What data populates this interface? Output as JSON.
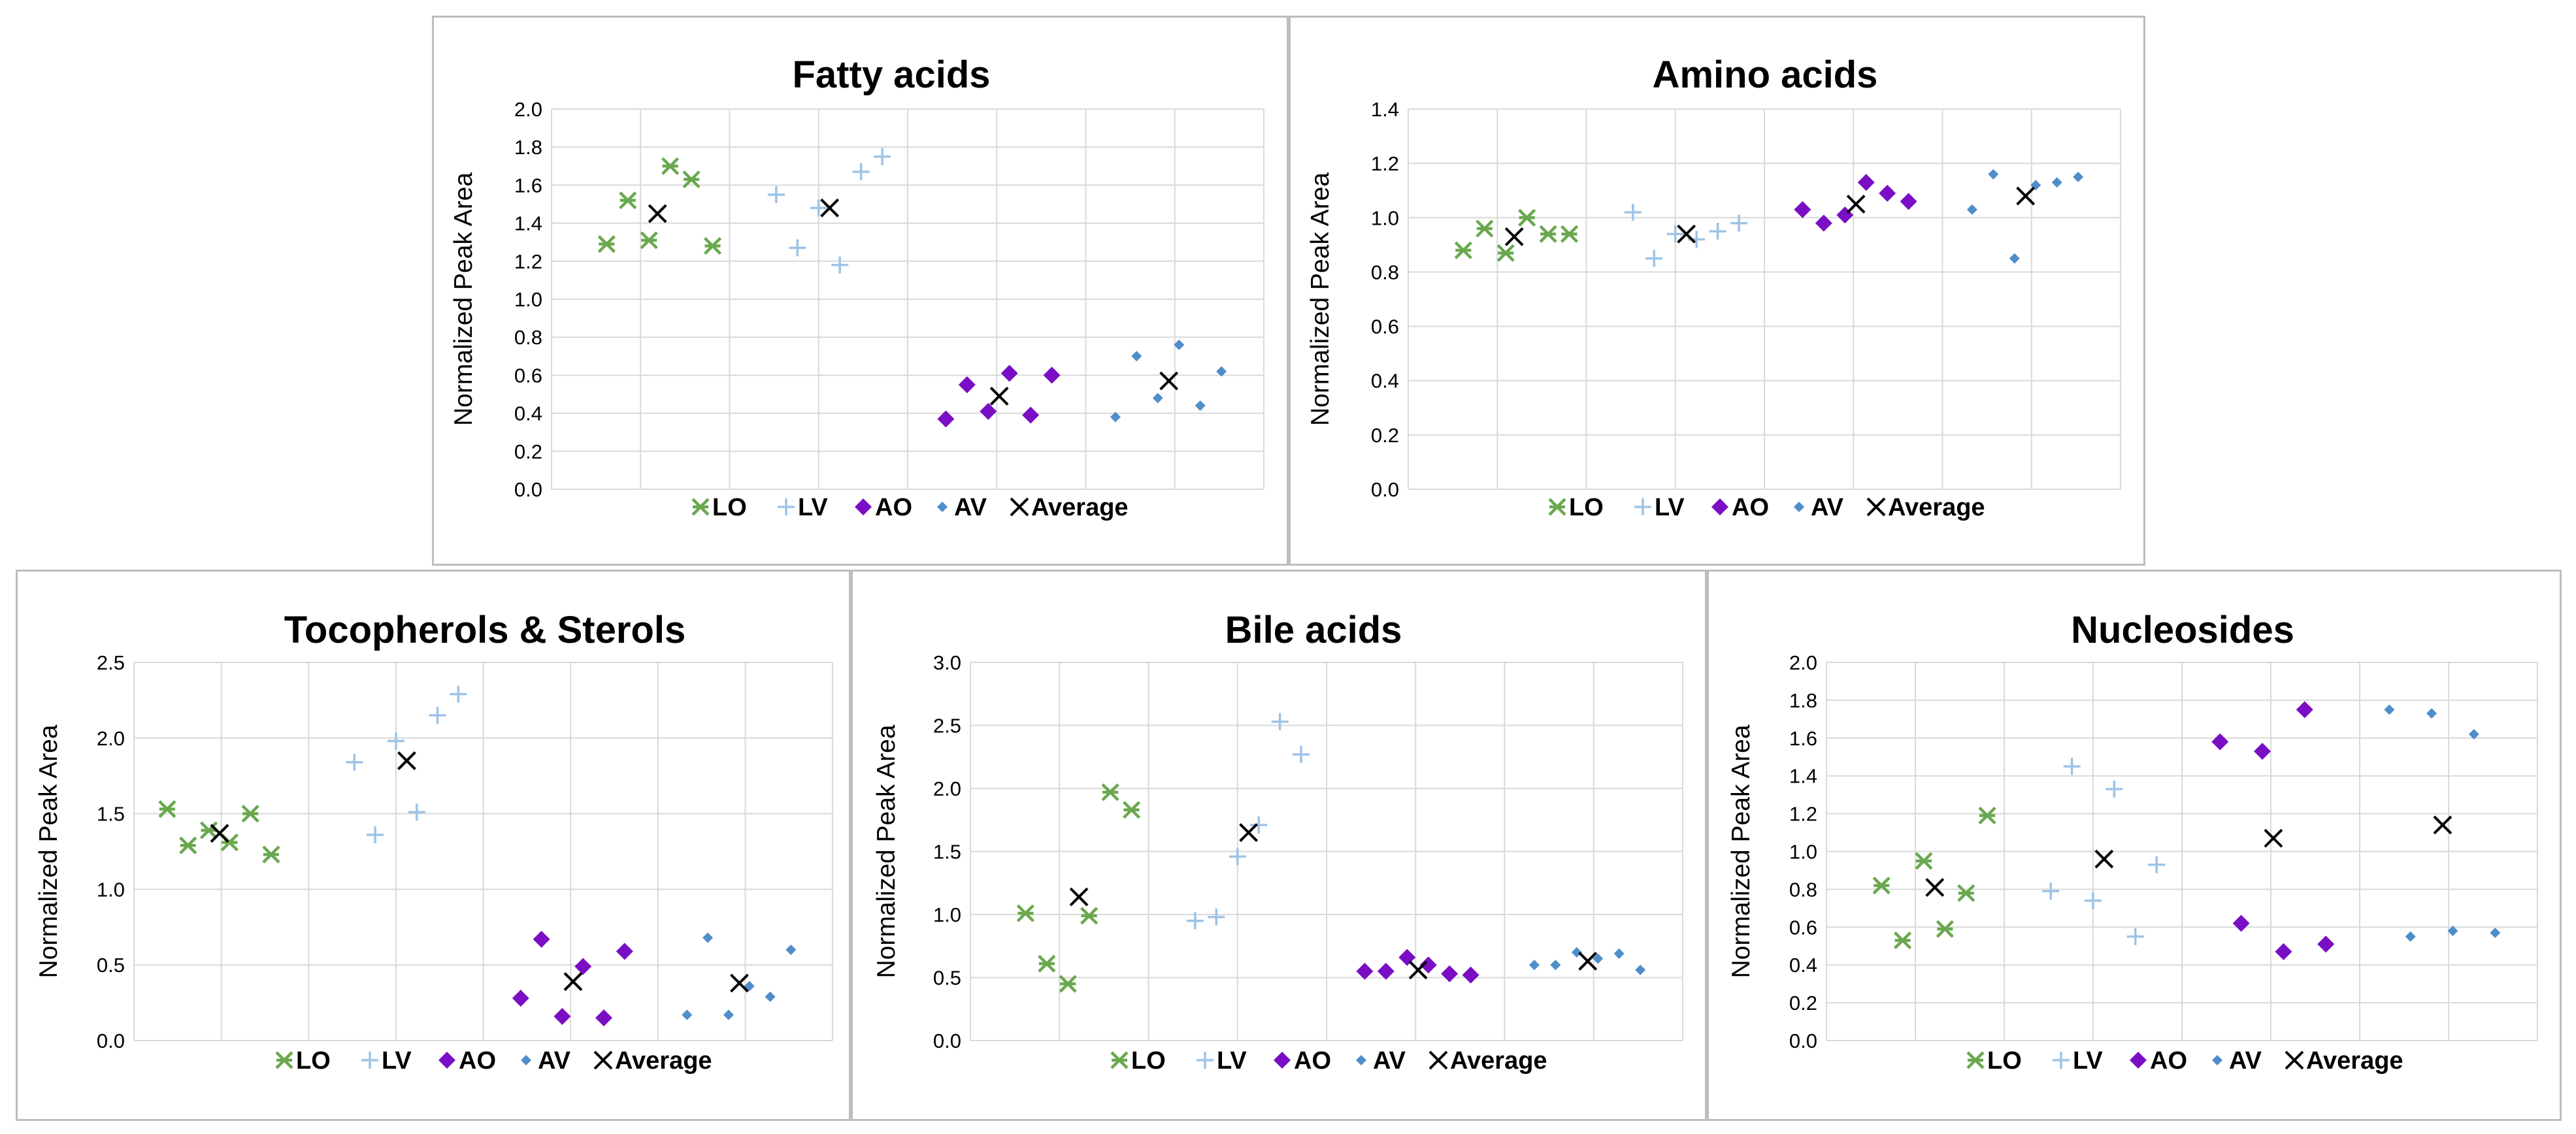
{
  "colors": {
    "LO": "#6aa84f",
    "LV": "#9dc3e6",
    "AO": "#7a0ec4",
    "AV": "#4f8ec9",
    "Average": "#000000"
  },
  "chart_data": [
    {
      "type": "scatter",
      "title": "Fatty acids",
      "ylabel": "Normalized Peak Area",
      "xlabel": "",
      "ylim": [
        0,
        2.0
      ],
      "yticks": [
        "0.0",
        "0.2",
        "0.4",
        "0.6",
        "0.8",
        "1.0",
        "1.2",
        "1.4",
        "1.6",
        "1.8",
        "2.0"
      ],
      "legend": [
        "LO",
        "LV",
        "AO",
        "AV",
        "Average"
      ],
      "series": [
        {
          "name": "LO",
          "marker": "asterisk",
          "points": [
            [
              0.25,
              1.29
            ],
            [
              0.5,
              1.52
            ],
            [
              0.75,
              1.31
            ],
            [
              1.0,
              1.7
            ],
            [
              1.25,
              1.63
            ],
            [
              1.5,
              1.28
            ]
          ]
        },
        {
          "name": "LV",
          "marker": "plus",
          "points": [
            [
              2.25,
              1.55
            ],
            [
              2.5,
              1.27
            ],
            [
              2.75,
              1.48
            ],
            [
              3.0,
              1.18
            ],
            [
              3.25,
              1.67
            ],
            [
              3.5,
              1.75
            ]
          ]
        },
        {
          "name": "AO",
          "marker": "diamond",
          "points": [
            [
              4.25,
              0.37
            ],
            [
              4.5,
              0.55
            ],
            [
              4.75,
              0.41
            ],
            [
              5.0,
              0.61
            ],
            [
              5.25,
              0.39
            ],
            [
              5.5,
              0.6
            ]
          ]
        },
        {
          "name": "AV",
          "marker": "smalldiamond",
          "points": [
            [
              6.25,
              0.38
            ],
            [
              6.5,
              0.7
            ],
            [
              6.75,
              0.48
            ],
            [
              7.0,
              0.76
            ],
            [
              7.25,
              0.44
            ],
            [
              7.5,
              0.62
            ]
          ]
        },
        {
          "name": "Average",
          "marker": "x",
          "points": [
            [
              0.85,
              1.45
            ],
            [
              2.88,
              1.48
            ],
            [
              4.88,
              0.49
            ],
            [
              6.88,
              0.57
            ]
          ]
        }
      ]
    },
    {
      "type": "scatter",
      "title": "Amino acids",
      "ylabel": "Normalized Peak Area",
      "xlabel": "",
      "ylim": [
        0,
        1.4
      ],
      "yticks": [
        "0.0",
        "0.2",
        "0.4",
        "0.6",
        "0.8",
        "1.0",
        "1.2",
        "1.4"
      ],
      "legend": [
        "LO",
        "LV",
        "AO",
        "AV",
        "Average"
      ],
      "series": [
        {
          "name": "LO",
          "marker": "asterisk",
          "points": [
            [
              0.25,
              0.88
            ],
            [
              0.5,
              0.96
            ],
            [
              0.75,
              0.87
            ],
            [
              1.0,
              1.0
            ],
            [
              1.25,
              0.94
            ],
            [
              1.5,
              0.94
            ]
          ]
        },
        {
          "name": "LV",
          "marker": "plus",
          "points": [
            [
              2.25,
              1.02
            ],
            [
              2.5,
              0.85
            ],
            [
              2.75,
              0.94
            ],
            [
              3.0,
              0.92
            ],
            [
              3.25,
              0.95
            ],
            [
              3.5,
              0.98
            ]
          ]
        },
        {
          "name": "AO",
          "marker": "diamond",
          "points": [
            [
              4.25,
              1.03
            ],
            [
              4.5,
              0.98
            ],
            [
              4.75,
              1.01
            ],
            [
              5.0,
              1.13
            ],
            [
              5.25,
              1.09
            ],
            [
              5.5,
              1.06
            ]
          ]
        },
        {
          "name": "AV",
          "marker": "smalldiamond",
          "points": [
            [
              6.25,
              1.03
            ],
            [
              6.5,
              1.16
            ],
            [
              6.75,
              0.85
            ],
            [
              7.0,
              1.12
            ],
            [
              7.25,
              1.13
            ],
            [
              7.5,
              1.15
            ]
          ]
        },
        {
          "name": "Average",
          "marker": "x",
          "points": [
            [
              0.85,
              0.93
            ],
            [
              2.88,
              0.94
            ],
            [
              4.88,
              1.05
            ],
            [
              6.88,
              1.08
            ]
          ]
        }
      ]
    },
    {
      "type": "scatter",
      "title": "Tocopherols & Sterols",
      "ylabel": "Normalized Peak Area",
      "xlabel": "",
      "ylim": [
        0,
        2.5
      ],
      "yticks": [
        "0.0",
        "0.5",
        "1.0",
        "1.5",
        "2.0",
        "2.5"
      ],
      "legend": [
        "LO",
        "LV",
        "AO",
        "AV",
        "Average"
      ],
      "series": [
        {
          "name": "LO",
          "marker": "asterisk",
          "points": [
            [
              0.0,
              1.53
            ],
            [
              0.25,
              1.29
            ],
            [
              0.5,
              1.39
            ],
            [
              0.75,
              1.31
            ],
            [
              1.0,
              1.5
            ],
            [
              1.25,
              1.23
            ]
          ]
        },
        {
          "name": "LV",
          "marker": "plus",
          "points": [
            [
              2.25,
              1.84
            ],
            [
              2.5,
              1.36
            ],
            [
              2.75,
              1.98
            ],
            [
              3.0,
              1.51
            ],
            [
              3.25,
              2.15
            ],
            [
              3.5,
              2.29
            ]
          ]
        },
        {
          "name": "AO",
          "marker": "diamond",
          "points": [
            [
              4.25,
              0.28
            ],
            [
              4.5,
              0.67
            ],
            [
              4.75,
              0.16
            ],
            [
              5.0,
              0.49
            ],
            [
              5.25,
              0.15
            ],
            [
              5.5,
              0.59
            ]
          ]
        },
        {
          "name": "AV",
          "marker": "smalldiamond",
          "points": [
            [
              6.25,
              0.17
            ],
            [
              6.5,
              0.68
            ],
            [
              6.75,
              0.17
            ],
            [
              7.0,
              0.36
            ],
            [
              7.25,
              0.29
            ],
            [
              7.5,
              0.6
            ]
          ]
        },
        {
          "name": "Average",
          "marker": "x",
          "points": [
            [
              0.63,
              1.37
            ],
            [
              2.88,
              1.85
            ],
            [
              4.88,
              0.39
            ],
            [
              6.88,
              0.38
            ]
          ]
        }
      ]
    },
    {
      "type": "scatter",
      "title": "Bile acids",
      "ylabel": "Normalized Peak Area",
      "xlabel": "",
      "ylim": [
        0,
        3.0
      ],
      "yticks": [
        "0.0",
        "0.5",
        "1.0",
        "1.5",
        "2.0",
        "2.5",
        "3.0"
      ],
      "legend": [
        "LO",
        "LV",
        "AO",
        "AV",
        "Average"
      ],
      "series": [
        {
          "name": "LO",
          "marker": "asterisk",
          "points": [
            [
              0.25,
              1.01
            ],
            [
              0.5,
              0.61
            ],
            [
              0.75,
              0.45
            ],
            [
              1.0,
              0.99
            ],
            [
              1.25,
              1.97
            ],
            [
              1.5,
              1.83
            ]
          ]
        },
        {
          "name": "LV",
          "marker": "plus",
          "points": [
            [
              2.25,
              0.95
            ],
            [
              2.5,
              0.98
            ],
            [
              2.75,
              1.46
            ],
            [
              3.0,
              1.71
            ],
            [
              3.25,
              2.53
            ],
            [
              3.5,
              2.27
            ]
          ]
        },
        {
          "name": "AO",
          "marker": "diamond",
          "points": [
            [
              4.25,
              0.55
            ],
            [
              4.5,
              0.55
            ],
            [
              4.75,
              0.66
            ],
            [
              5.0,
              0.6
            ],
            [
              5.25,
              0.53
            ],
            [
              5.5,
              0.52
            ]
          ]
        },
        {
          "name": "AV",
          "marker": "smalldiamond",
          "points": [
            [
              6.25,
              0.6
            ],
            [
              6.5,
              0.6
            ],
            [
              6.75,
              0.7
            ],
            [
              7.0,
              0.65
            ],
            [
              7.25,
              0.69
            ],
            [
              7.5,
              0.56
            ]
          ]
        },
        {
          "name": "Average",
          "marker": "x",
          "points": [
            [
              0.88,
              1.14
            ],
            [
              2.88,
              1.65
            ],
            [
              4.88,
              0.56
            ],
            [
              6.88,
              0.63
            ]
          ]
        }
      ]
    },
    {
      "type": "scatter",
      "title": "Nucleosides",
      "ylabel": "Normalized Peak Area",
      "xlabel": "",
      "ylim": [
        0,
        2.0
      ],
      "yticks": [
        "0.0",
        "0.2",
        "0.4",
        "0.6",
        "0.8",
        "1.0",
        "1.2",
        "1.4",
        "1.6",
        "1.8",
        "2.0"
      ],
      "legend": [
        "LO",
        "LV",
        "AO",
        "AV",
        "Average"
      ],
      "series": [
        {
          "name": "LO",
          "marker": "asterisk",
          "points": [
            [
              0.25,
              0.82
            ],
            [
              0.5,
              0.53
            ],
            [
              0.75,
              0.95
            ],
            [
              1.0,
              0.59
            ],
            [
              1.25,
              0.78
            ],
            [
              1.5,
              1.19
            ]
          ]
        },
        {
          "name": "LV",
          "marker": "plus",
          "points": [
            [
              2.25,
              0.79
            ],
            [
              2.5,
              1.45
            ],
            [
              2.75,
              0.74
            ],
            [
              3.0,
              1.33
            ],
            [
              3.25,
              0.55
            ],
            [
              3.5,
              0.93
            ]
          ]
        },
        {
          "name": "AO",
          "marker": "diamond",
          "points": [
            [
              4.25,
              1.58
            ],
            [
              4.5,
              0.62
            ],
            [
              4.75,
              1.53
            ],
            [
              5.0,
              0.47
            ],
            [
              5.25,
              1.75
            ],
            [
              5.5,
              0.51
            ]
          ]
        },
        {
          "name": "AV",
          "marker": "smalldiamond",
          "points": [
            [
              6.25,
              1.75
            ],
            [
              6.5,
              0.55
            ],
            [
              6.75,
              1.73
            ],
            [
              7.0,
              0.58
            ],
            [
              7.25,
              1.62
            ],
            [
              7.5,
              0.57
            ]
          ]
        },
        {
          "name": "Average",
          "marker": "x",
          "points": [
            [
              0.88,
              0.81
            ],
            [
              2.88,
              0.96
            ],
            [
              4.88,
              1.07
            ],
            [
              6.88,
              1.14
            ]
          ]
        }
      ]
    }
  ]
}
